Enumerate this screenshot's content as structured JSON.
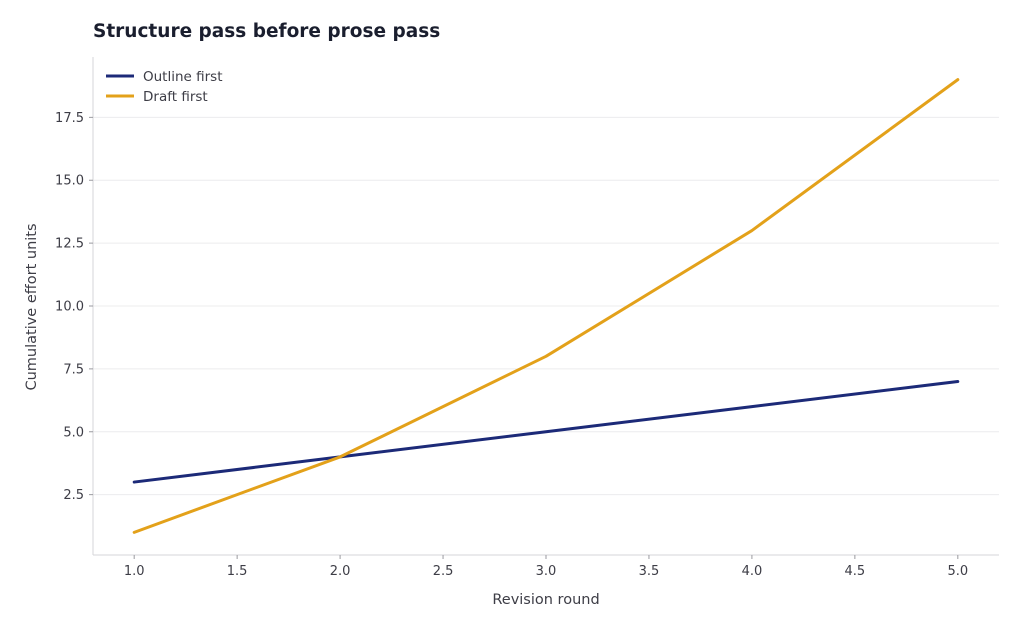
{
  "chart_data": {
    "type": "line",
    "title": "Structure pass before prose pass",
    "xlabel": "Revision round",
    "ylabel": "Cumulative effort units",
    "x": [
      1,
      2,
      3,
      4,
      5
    ],
    "series": [
      {
        "name": "Outline first",
        "color": "#1c2a78",
        "values": [
          3,
          4,
          5,
          6,
          7
        ]
      },
      {
        "name": "Draft first",
        "color": "#e3a11a",
        "values": [
          1,
          4,
          8,
          13,
          19
        ]
      }
    ],
    "xlim": [
      0.8,
      5.2
    ],
    "ylim": [
      0.1,
      19.9
    ],
    "xticks": [
      "1.0",
      "1.5",
      "2.0",
      "2.5",
      "3.0",
      "3.5",
      "4.0",
      "4.5",
      "5.0"
    ],
    "yticks": [
      "2.5",
      "5.0",
      "7.5",
      "10.0",
      "12.5",
      "15.0",
      "17.5"
    ],
    "grid": true,
    "legend": "top-left"
  }
}
